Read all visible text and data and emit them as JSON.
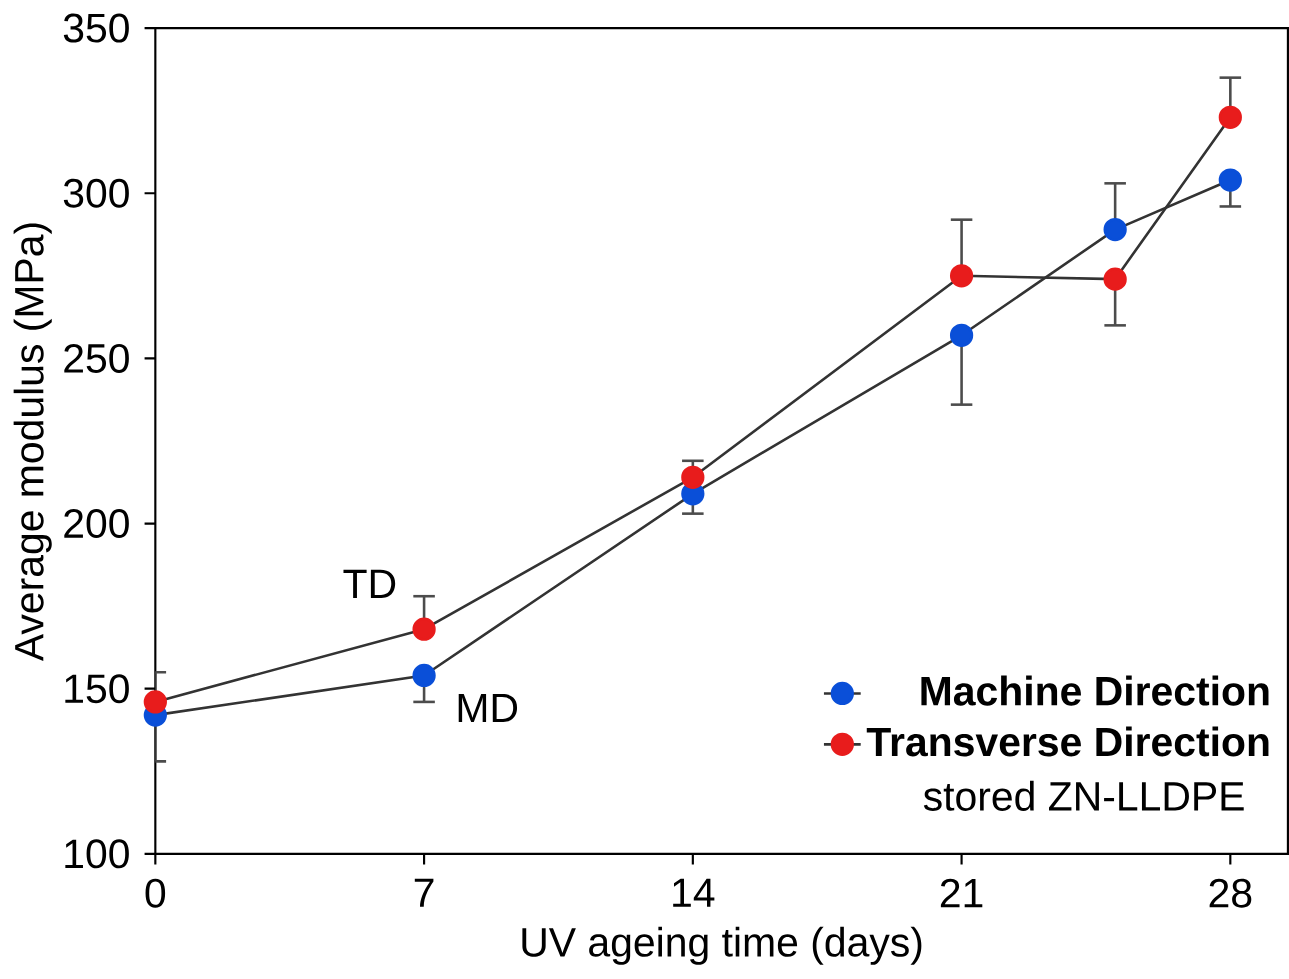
{
  "chart_data": {
    "type": "line",
    "xlabel": "UV ageing time (days)",
    "ylabel": "Average modulus (MPa)",
    "x": [
      0,
      7,
      14,
      21,
      25,
      28
    ],
    "series": [
      {
        "name": "Machine Direction",
        "color": "#0a4fd8",
        "values": [
          142,
          154,
          209,
          257,
          289,
          304
        ],
        "errors": [
          [
            128,
            142
          ],
          [
            146,
            154
          ],
          [
            203,
            209
          ],
          [
            236,
            257
          ],
          [
            289,
            303
          ],
          [
            296,
            304
          ]
        ]
      },
      {
        "name": "Transverse Direction",
        "color": "#e81c1c",
        "values": [
          146,
          168,
          214,
          275,
          274,
          323
        ],
        "errors": [
          [
            146,
            155
          ],
          [
            168,
            178
          ],
          [
            214,
            219
          ],
          [
            275,
            292
          ],
          [
            260,
            274
          ],
          [
            323,
            335
          ]
        ]
      }
    ],
    "annotations": [
      {
        "text": "TD",
        "x": 7,
        "y": 168
      },
      {
        "text": "MD",
        "x": 7,
        "y": 154
      },
      "stored ZN-LLDPE"
    ],
    "xlim": [
      0,
      29.5
    ],
    "ylim": [
      100,
      350
    ],
    "xticks": [
      0,
      7,
      14,
      21,
      28
    ],
    "yticks": [
      100,
      150,
      200,
      250,
      300,
      350
    ],
    "marker": "circle",
    "legend": "bottom right",
    "grid": false
  }
}
